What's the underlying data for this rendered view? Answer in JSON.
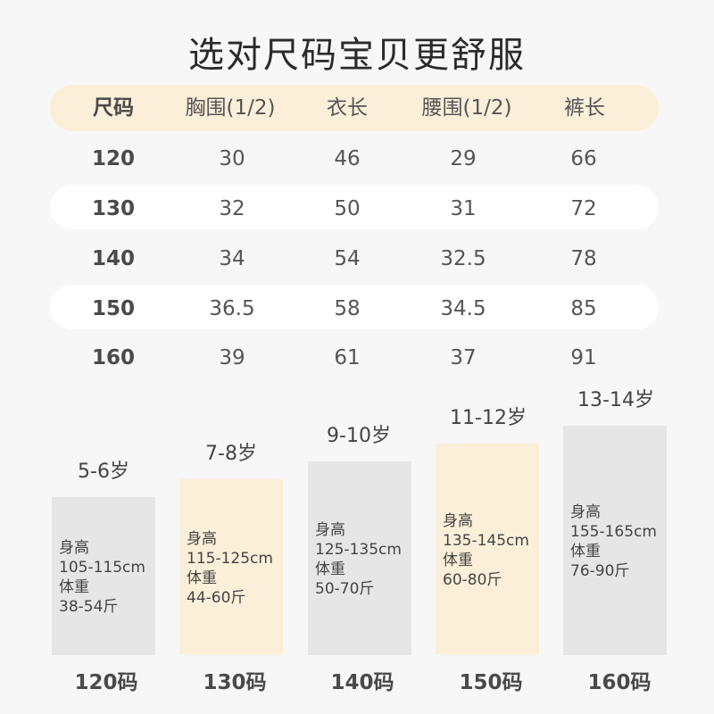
{
  "title": "选对尺码宝贝更舒服",
  "table": {
    "headers": [
      "尺码",
      "胸围(1/2)",
      "衣长",
      "腰围(1/2)",
      "裤长"
    ],
    "rows": [
      [
        "120",
        "30",
        "46",
        "29",
        "66"
      ],
      [
        "130",
        "32",
        "50",
        "31",
        "72"
      ],
      [
        "140",
        "34",
        "54",
        "32.5",
        "78"
      ],
      [
        "150",
        "36.5",
        "58",
        "34.5",
        "85"
      ],
      [
        "160",
        "39",
        "61",
        "37",
        "91"
      ]
    ]
  },
  "sizes": [
    {
      "age": "5-6岁",
      "height_label": "身高",
      "height": "105-115cm",
      "weight_label": "体重",
      "weight": "38-54斤",
      "size": "120码",
      "color": "#e6e6e6"
    },
    {
      "age": "7-8岁",
      "height_label": "身高",
      "height": "115-125cm",
      "weight_label": "体重",
      "weight": "44-60斤",
      "size": "130码",
      "color": "#fcefd9"
    },
    {
      "age": "9-10岁",
      "height_label": "身高",
      "height": "125-135cm",
      "weight_label": "体重",
      "weight": "50-70斤",
      "size": "140码",
      "color": "#e6e6e6"
    },
    {
      "age": "11-12岁",
      "height_label": "身高",
      "height": "135-145cm",
      "weight_label": "体重",
      "weight": "60-80斤",
      "size": "150码",
      "color": "#fcefd9"
    },
    {
      "age": "13-14岁",
      "height_label": "身高",
      "height": "155-165cm",
      "weight_label": "体重",
      "weight": "76-90斤",
      "size": "160码",
      "color": "#e6e6e6"
    }
  ]
}
